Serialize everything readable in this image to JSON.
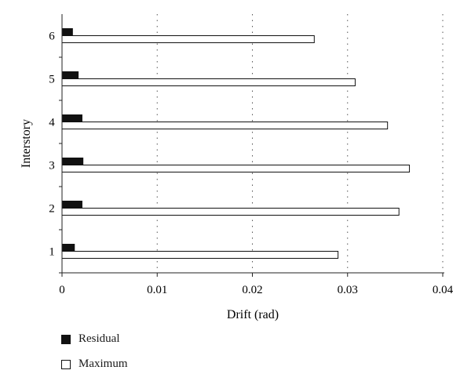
{
  "chart_data": {
    "type": "bar",
    "orientation": "horizontal",
    "title": "",
    "xlabel": "Drift (rad)",
    "ylabel": "Interstory",
    "categories": [
      "1",
      "2",
      "3",
      "4",
      "5",
      "6"
    ],
    "series": [
      {
        "name": "Residual",
        "color": "#111111",
        "values": [
          0.0013,
          0.0021,
          0.0022,
          0.0021,
          0.0017,
          0.0011
        ]
      },
      {
        "name": "Maximum",
        "color": "#ffffff",
        "values": [
          0.029,
          0.0354,
          0.0365,
          0.0342,
          0.0308,
          0.0265
        ]
      }
    ],
    "xlim": [
      0,
      0.04
    ],
    "xticks": [
      0,
      0.01,
      0.02,
      0.03,
      0.04
    ],
    "xtick_labels": [
      "0",
      "0.01",
      "0.02",
      "0.03",
      "0.04"
    ],
    "grid": "vertical dotted lines at x ticks",
    "legend_position": "bottom-left"
  }
}
